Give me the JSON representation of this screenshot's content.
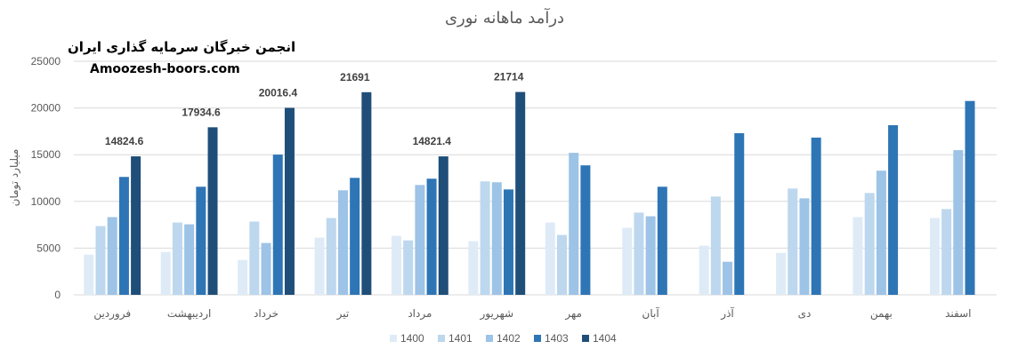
{
  "watermark": {
    "org": "انجمن خبرگان سرمایه گذاری ایران",
    "site": "Amoozesh-boors.com"
  },
  "chart_data": {
    "type": "bar",
    "title": "درآمد ماهانه نوری",
    "xlabel": "",
    "ylabel": "میلیارد تومان",
    "ylim": [
      0,
      25000
    ],
    "yticks": [
      0,
      5000,
      10000,
      15000,
      20000,
      25000
    ],
    "grid": true,
    "legend": "bottom",
    "categories": [
      "فروردین",
      "اردیبهشت",
      "خرداد",
      "تیر",
      "مرداد",
      "شهریور",
      "مهر",
      "آبان",
      "آذر",
      "دی",
      "بهمن",
      "اسفند"
    ],
    "series": [
      {
        "name": "1400",
        "color": "#deebf7",
        "values": [
          4300,
          4590,
          3730,
          6120,
          6310,
          5740,
          7740,
          7170,
          5260,
          4490,
          8320,
          8220
        ]
      },
      {
        "name": "1401",
        "color": "#bdd7ee",
        "values": [
          7360,
          7740,
          7840,
          8220,
          5830,
          12140,
          6410,
          8800,
          10520,
          11380,
          10900,
          9180
        ]
      },
      {
        "name": "1402",
        "color": "#9dc3e6",
        "values": [
          8320,
          7550,
          5550,
          11190,
          11760,
          12050,
          15200,
          8410,
          3540,
          10330,
          13290,
          15490
        ]
      },
      {
        "name": "1403",
        "color": "#2e75b6",
        "values": [
          12620,
          11570,
          15010,
          12520,
          12430,
          11280,
          13860,
          11570,
          17300,
          16830,
          18160,
          20750
        ]
      },
      {
        "name": "1404",
        "color": "#1f4e79",
        "values": [
          14824.6,
          17934.6,
          20016.4,
          21691,
          14821.4,
          21714,
          null,
          null,
          null,
          null,
          null,
          null
        ]
      }
    ],
    "data_labels": {
      "series": "1404",
      "labels": [
        "14824.6",
        "17934.6",
        "20016.4",
        "21691",
        "14821.4",
        "21714"
      ]
    }
  }
}
